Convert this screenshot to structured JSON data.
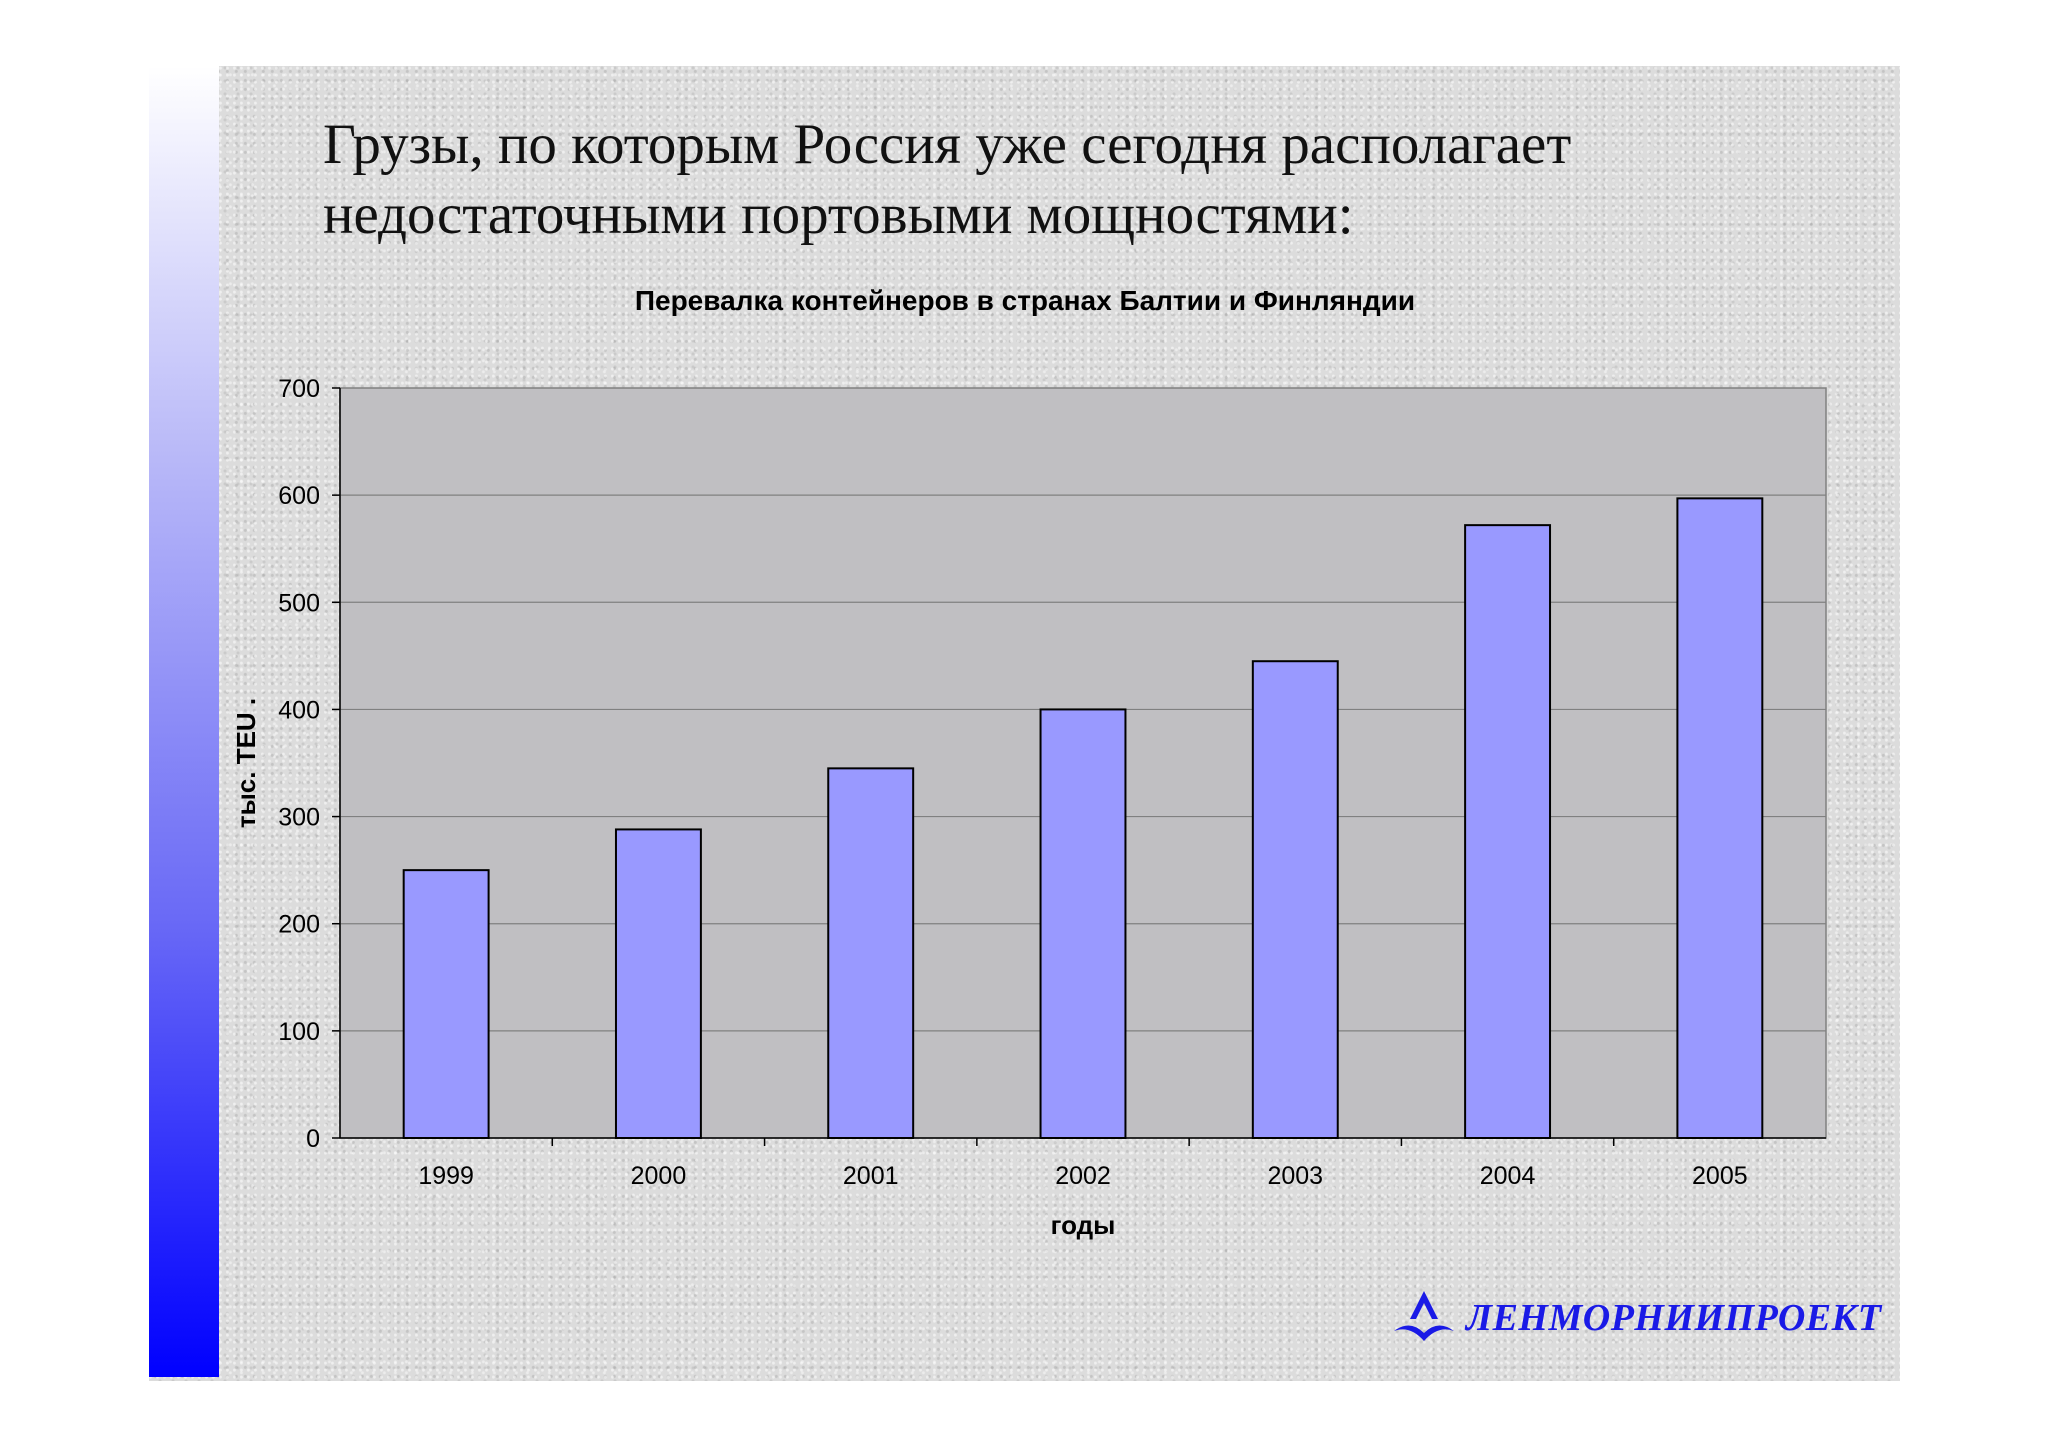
{
  "slide": {
    "title_line1": "Грузы, по которым Россия уже сегодня располагает",
    "title_line2": "недостаточными портовыми мощностями:"
  },
  "logo": {
    "text": "ЛЕНМОРНИИПРОЕКТ",
    "color": "#1a1ae6"
  },
  "colors": {
    "plot_background": "#c0bfc2",
    "bar_fill": "#9999ff",
    "bar_stroke": "#000000",
    "gridline": "#808080"
  },
  "chart_data": {
    "type": "bar",
    "title": "Перевалка контейнеров в странах Балтии и Финляндии",
    "xlabel": "годы",
    "ylabel": "тыс. TEU .",
    "categories": [
      "1999",
      "2000",
      "2001",
      "2002",
      "2003",
      "2004",
      "2005"
    ],
    "values": [
      250,
      288,
      345,
      400,
      445,
      572,
      597
    ],
    "ylim": [
      0,
      700
    ],
    "yticks": [
      0,
      100,
      200,
      300,
      400,
      500,
      600,
      700
    ],
    "grid": true,
    "legend": "none"
  }
}
